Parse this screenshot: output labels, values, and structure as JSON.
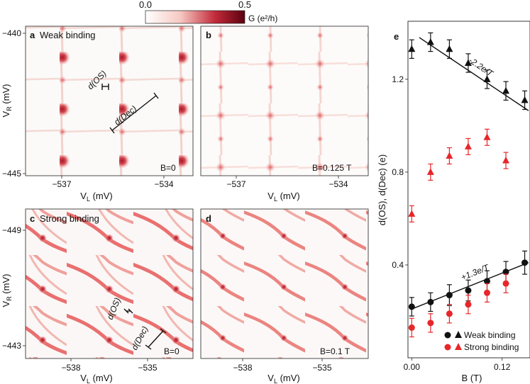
{
  "colorbar": {
    "min_label": "0.0",
    "max_label": "0.5",
    "unit_label": "G (e²/h)",
    "color_low": "#ffffff",
    "color_high": "#5c0010"
  },
  "panels": {
    "a": {
      "letter": "a",
      "title": "Weak binding",
      "field": "B=0",
      "x_ticks": [
        "−537",
        "−534"
      ],
      "y_ticks": [
        "−440",
        "−445"
      ],
      "xlabel_main": "V",
      "xlabel_sub": "L",
      "xlabel_unit": " (mV)",
      "ylabel_main": "V",
      "ylabel_sub": "R",
      "ylabel_unit": " (mV)",
      "ann_os": "d(OS)",
      "ann_dec": "d(Dec)"
    },
    "b": {
      "letter": "b",
      "field": "B=0.125 T",
      "x_ticks": [
        "−537",
        "−534"
      ],
      "xlabel_main": "V",
      "xlabel_sub": "L",
      "xlabel_unit": " (mV)"
    },
    "c": {
      "letter": "c",
      "title": "Strong binding",
      "field": "B=0",
      "x_ticks": [
        "−538",
        "−535"
      ],
      "y_ticks": [
        "−449",
        "−443"
      ],
      "xlabel_main": "V",
      "xlabel_sub": "L",
      "xlabel_unit": " (mV)",
      "ylabel_main": "V",
      "ylabel_sub": "R",
      "ylabel_unit": " (mV)",
      "ann_os": "d(OS)",
      "ann_dec": "d(Dec)"
    },
    "d": {
      "letter": "d",
      "field": "B=0.1 T",
      "x_ticks": [
        "−538",
        "−535"
      ],
      "xlabel_main": "V",
      "xlabel_sub": "L",
      "xlabel_unit": " (mV)"
    }
  },
  "chart_data": {
    "type": "scatter",
    "panel_letter": "e",
    "xlabel": "B (T)",
    "ylabel": "d(OS), d(Dec) (e)",
    "xlim": [
      -0.005,
      0.157
    ],
    "ylim": [
      0.0,
      1.45
    ],
    "x_ticks": [
      "0.00",
      "0.12"
    ],
    "x_tick_values": [
      0.0,
      0.12
    ],
    "y_ticks": [
      "0.4",
      "0.8",
      "1.2"
    ],
    "y_tick_values": [
      0.4,
      0.8,
      1.2
    ],
    "series": [
      {
        "name": "Weak binding d(Dec)",
        "marker": "triangle",
        "color": "#111111",
        "x": [
          0.0,
          0.025,
          0.05,
          0.075,
          0.1,
          0.125,
          0.15
        ],
        "y": [
          1.33,
          1.36,
          1.33,
          1.27,
          1.2,
          1.15,
          1.11
        ],
        "err": [
          0.04,
          0.04,
          0.04,
          0.04,
          0.04,
          0.04,
          0.04
        ]
      },
      {
        "name": "Strong binding d(Dec)",
        "marker": "triangle",
        "color": "#e8262a",
        "x": [
          0.0,
          0.025,
          0.05,
          0.075,
          0.1,
          0.125
        ],
        "y": [
          0.62,
          0.8,
          0.87,
          0.91,
          0.95,
          0.85
        ],
        "err": [
          0.035,
          0.035,
          0.035,
          0.035,
          0.035,
          0.035
        ]
      },
      {
        "name": "Weak binding d(OS)",
        "marker": "circle",
        "color": "#111111",
        "x": [
          0.0,
          0.025,
          0.05,
          0.075,
          0.1,
          0.125,
          0.15
        ],
        "y": [
          0.22,
          0.24,
          0.27,
          0.29,
          0.33,
          0.37,
          0.41
        ],
        "err": [
          0.04,
          0.04,
          0.045,
          0.045,
          0.045,
          0.045,
          0.05
        ]
      },
      {
        "name": "Strong binding d(OS)",
        "marker": "circle",
        "color": "#e8262a",
        "x": [
          0.0,
          0.025,
          0.05,
          0.075,
          0.1,
          0.125
        ],
        "y": [
          0.13,
          0.15,
          0.19,
          0.23,
          0.28,
          0.32
        ],
        "err": [
          0.04,
          0.04,
          0.04,
          0.04,
          0.04,
          0.04
        ]
      }
    ],
    "fits": [
      {
        "label": "-2.2e/T",
        "x": [
          0.01,
          0.155
        ],
        "y": [
          1.38,
          1.065
        ]
      },
      {
        "label": "+1.3e/T",
        "x": [
          0.0,
          0.155
        ],
        "y": [
          0.21,
          0.41
        ]
      }
    ],
    "legend": {
      "position": "bottom-right",
      "entries": [
        {
          "label": "Weak binding",
          "color": "#111111"
        },
        {
          "label": "Strong binding",
          "color": "#e8262a"
        }
      ]
    }
  }
}
